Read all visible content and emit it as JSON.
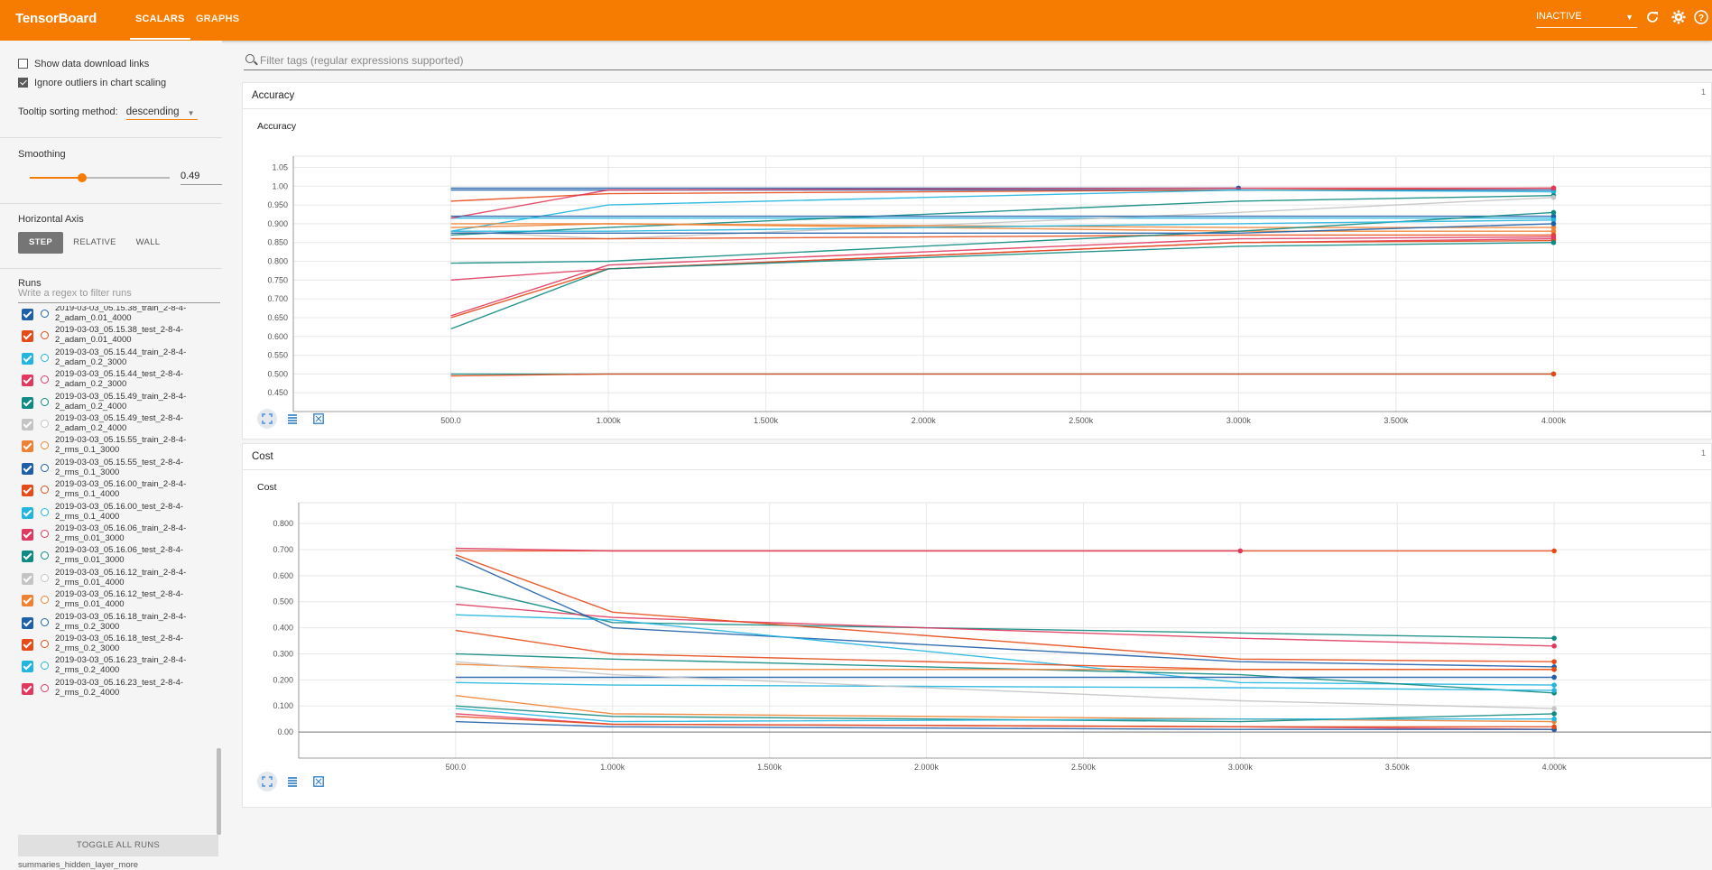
{
  "app": {
    "title": "TensorBoard",
    "tabs": [
      "SCALARS",
      "GRAPHS"
    ],
    "active_tab": "SCALARS",
    "status_select": "INACTIVE",
    "accent": "#f57c00"
  },
  "sidebar": {
    "show_download_label": "Show data download links",
    "show_download_checked": false,
    "ignore_outliers_label": "Ignore outliers in chart scaling",
    "ignore_outliers_checked": true,
    "tooltip_label": "Tooltip sorting method:",
    "tooltip_value": "descending",
    "smoothing_label": "Smoothing",
    "smoothing_value": "0.49",
    "smoothing_fraction": 0.49,
    "horizontal_axis_label": "Horizontal Axis",
    "axis_buttons": [
      "STEP",
      "RELATIVE",
      "WALL"
    ],
    "axis_active": "STEP",
    "runs_label": "Runs",
    "runs_filter_placeholder": "Write a regex to filter runs",
    "runs": [
      {
        "name_line1": "2019-03-03_05.15.38_train_2-8-4-",
        "name_line2": "2_adam_0.01_4000",
        "color": "#1f5fa8",
        "checked": true
      },
      {
        "name_line1": "2019-03-03_05.15.38_test_2-8-4-",
        "name_line2": "2_adam_0.01_4000",
        "color": "#e64a19",
        "checked": true
      },
      {
        "name_line1": "2019-03-03_05.15.44_train_2-8-4-",
        "name_line2": "2_adam_0.2_3000",
        "color": "#22b5e0",
        "checked": true
      },
      {
        "name_line1": "2019-03-03_05.15.44_test_2-8-4-",
        "name_line2": "2_adam_0.2_3000",
        "color": "#e0385f",
        "checked": true
      },
      {
        "name_line1": "2019-03-03_05.15.49_train_2-8-4-",
        "name_line2": "2_adam_0.2_4000",
        "color": "#0f8a82",
        "checked": true
      },
      {
        "name_line1": "2019-03-03_05.15.49_test_2-8-4-",
        "name_line2": "2_adam_0.2_4000",
        "color": "#c4c4c4",
        "checked": true
      },
      {
        "name_line1": "2019-03-03_05.15.55_train_2-8-4-",
        "name_line2": "2_rms_0.1_3000",
        "color": "#ef8232",
        "checked": true
      },
      {
        "name_line1": "2019-03-03_05.15.55_test_2-8-4-",
        "name_line2": "2_rms_0.1_3000",
        "color": "#1f5fa8",
        "checked": true
      },
      {
        "name_line1": "2019-03-03_05.16.00_train_2-8-4-",
        "name_line2": "2_rms_0.1_4000",
        "color": "#e64a19",
        "checked": true
      },
      {
        "name_line1": "2019-03-03_05.16.00_test_2-8-4-",
        "name_line2": "2_rms_0.1_4000",
        "color": "#22b5e0",
        "checked": true
      },
      {
        "name_line1": "2019-03-03_05.16.06_train_2-8-4-",
        "name_line2": "2_rms_0.01_3000",
        "color": "#e0385f",
        "checked": true
      },
      {
        "name_line1": "2019-03-03_05.16.06_test_2-8-4-",
        "name_line2": "2_rms_0.01_3000",
        "color": "#0f8a82",
        "checked": true
      },
      {
        "name_line1": "2019-03-03_05.16.12_train_2-8-4-",
        "name_line2": "2_rms_0.01_4000",
        "color": "#c4c4c4",
        "checked": true
      },
      {
        "name_line1": "2019-03-03_05.16.12_test_2-8-4-",
        "name_line2": "2_rms_0.01_4000",
        "color": "#ef8232",
        "checked": true
      },
      {
        "name_line1": "2019-03-03_05.16.18_train_2-8-4-",
        "name_line2": "2_rms_0.2_3000",
        "color": "#1f5fa8",
        "checked": true
      },
      {
        "name_line1": "2019-03-03_05.16.18_test_2-8-4-",
        "name_line2": "2_rms_0.2_3000",
        "color": "#e64a19",
        "checked": true
      },
      {
        "name_line1": "2019-03-03_05.16.23_train_2-8-4-",
        "name_line2": "2_rms_0.2_4000",
        "color": "#22b5e0",
        "checked": true
      },
      {
        "name_line1": "2019-03-03_05.16.23_test_2-8-4-",
        "name_line2": "2_rms_0.2_4000",
        "color": "#e0385f",
        "checked": true
      }
    ],
    "toggle_all_label": "TOGGLE ALL RUNS",
    "footer_path": "summaries_hidden_layer_more"
  },
  "main": {
    "filter_placeholder": "Filter tags (regular expressions supported)",
    "sections": [
      {
        "title": "Accuracy",
        "count": "1",
        "card_title": "Accuracy"
      },
      {
        "title": "Cost",
        "count": "1",
        "card_title": "Cost"
      }
    ]
  },
  "chart_data": [
    {
      "type": "line",
      "title": "Accuracy",
      "xlim": [
        0,
        4500
      ],
      "ylim": [
        0.4,
        1.08
      ],
      "xticks": [
        500,
        1000,
        1500,
        2000,
        2500,
        3000,
        3500,
        4000
      ],
      "xtick_labels": [
        "500.0",
        "1.000k",
        "1.500k",
        "2.000k",
        "2.500k",
        "3.000k",
        "3.500k",
        "4.000k"
      ],
      "yticks": [
        0.45,
        0.5,
        0.55,
        0.6,
        0.65,
        0.7,
        0.75,
        0.8,
        0.85,
        0.9,
        0.95,
        1.0,
        1.05
      ],
      "ytick_labels": [
        "0.450",
        "0.500",
        "0.550",
        "0.600",
        "0.650",
        "0.700",
        "0.750",
        "0.800",
        "0.850",
        "0.900",
        "0.950",
        "1.00",
        "1.05"
      ],
      "series": [
        {
          "color": "#1f5fa8",
          "x": [
            500,
            1000,
            3000
          ],
          "y": [
            0.995,
            0.995,
            0.995
          ]
        },
        {
          "color": "#1f5fa8",
          "x": [
            500,
            1000,
            3000,
            4000
          ],
          "y": [
            0.99,
            0.99,
            0.99,
            0.99
          ]
        },
        {
          "color": "#e64a19",
          "x": [
            500,
            1000,
            3000,
            4000
          ],
          "y": [
            0.96,
            0.98,
            0.99,
            0.995
          ]
        },
        {
          "color": "#22b5e0",
          "x": [
            500,
            1000,
            3000,
            4000
          ],
          "y": [
            0.915,
            0.915,
            0.915,
            0.915
          ]
        },
        {
          "color": "#22b5e0",
          "x": [
            500,
            1000,
            3000,
            4000
          ],
          "y": [
            0.88,
            0.95,
            0.99,
            0.985
          ]
        },
        {
          "color": "#0f8a82",
          "x": [
            500,
            1000,
            3000,
            4000
          ],
          "y": [
            0.87,
            0.89,
            0.96,
            0.975
          ]
        },
        {
          "color": "#e0385f",
          "x": [
            500,
            1000,
            3000,
            4000
          ],
          "y": [
            0.915,
            0.99,
            0.995,
            0.995
          ]
        },
        {
          "color": "#e0385f",
          "x": [
            500,
            1000,
            3000,
            4000
          ],
          "y": [
            0.75,
            0.78,
            0.85,
            0.86
          ]
        },
        {
          "color": "#c4c4c4",
          "x": [
            500,
            1000,
            3000,
            4000
          ],
          "y": [
            0.88,
            0.86,
            0.93,
            0.97
          ]
        },
        {
          "color": "#ef8232",
          "x": [
            500,
            1000,
            3000,
            4000
          ],
          "y": [
            0.89,
            0.9,
            0.88,
            0.88
          ]
        },
        {
          "color": "#ef8232",
          "x": [
            500,
            1000,
            3000,
            4000
          ],
          "y": [
            0.9,
            0.9,
            0.89,
            0.89
          ]
        },
        {
          "color": "#1f5fa8",
          "x": [
            500,
            1000,
            3000,
            4000
          ],
          "y": [
            0.92,
            0.92,
            0.92,
            0.92
          ]
        },
        {
          "color": "#e64a19",
          "x": [
            500,
            1000,
            3000,
            4000
          ],
          "y": [
            0.86,
            0.86,
            0.87,
            0.87
          ]
        },
        {
          "color": "#e64a19",
          "x": [
            500,
            1000,
            3000,
            4000
          ],
          "y": [
            0.65,
            0.78,
            0.85,
            0.855
          ]
        },
        {
          "color": "#0f8a82",
          "x": [
            500,
            1000,
            3000,
            4000
          ],
          "y": [
            0.795,
            0.8,
            0.88,
            0.93
          ]
        },
        {
          "color": "#0f8a82",
          "x": [
            500,
            1000,
            3000,
            4000
          ],
          "y": [
            0.62,
            0.78,
            0.84,
            0.85
          ]
        },
        {
          "color": "#22b5e0",
          "x": [
            500,
            1000,
            3000,
            4000
          ],
          "y": [
            0.88,
            0.88,
            0.9,
            0.91
          ]
        },
        {
          "color": "#e0385f",
          "x": [
            500,
            1000,
            3000,
            4000
          ],
          "y": [
            0.655,
            0.79,
            0.86,
            0.865
          ]
        },
        {
          "color": "#1f5fa8",
          "x": [
            500,
            1000,
            3000,
            4000
          ],
          "y": [
            0.875,
            0.875,
            0.875,
            0.9
          ]
        },
        {
          "color": "#0f8a82",
          "x": [
            500,
            1000,
            3000,
            4000
          ],
          "y": [
            0.5,
            0.5,
            0.5,
            0.5
          ]
        },
        {
          "color": "#e64a19",
          "x": [
            500,
            1000,
            3000,
            4000
          ],
          "y": [
            0.495,
            0.5,
            0.5,
            0.5
          ]
        }
      ]
    },
    {
      "type": "line",
      "title": "Cost",
      "xlim": [
        0,
        4500
      ],
      "ylim": [
        -0.1,
        0.88
      ],
      "xticks": [
        500,
        1000,
        1500,
        2000,
        2500,
        3000,
        3500,
        4000
      ],
      "xtick_labels": [
        "500.0",
        "1.000k",
        "1.500k",
        "2.000k",
        "2.500k",
        "3.000k",
        "3.500k",
        "4.000k"
      ],
      "yticks": [
        0.0,
        0.1,
        0.2,
        0.3,
        0.4,
        0.5,
        0.6,
        0.7,
        0.8
      ],
      "ytick_labels": [
        "0.00",
        "0.100",
        "0.200",
        "0.300",
        "0.400",
        "0.500",
        "0.600",
        "0.700",
        "0.800"
      ],
      "series": [
        {
          "color": "#e64a19",
          "x": [
            500,
            1000,
            3000,
            4000
          ],
          "y": [
            0.695,
            0.695,
            0.695,
            0.695
          ]
        },
        {
          "color": "#e0385f",
          "x": [
            500,
            1000,
            3000
          ],
          "y": [
            0.705,
            0.695,
            0.695
          ]
        },
        {
          "color": "#0f8a82",
          "x": [
            500,
            1000,
            3000,
            4000
          ],
          "y": [
            0.56,
            0.42,
            0.38,
            0.36
          ]
        },
        {
          "color": "#e0385f",
          "x": [
            500,
            1000,
            3000,
            4000
          ],
          "y": [
            0.49,
            0.44,
            0.36,
            0.33
          ]
        },
        {
          "color": "#1f5fa8",
          "x": [
            500,
            1000,
            3000,
            4000
          ],
          "y": [
            0.67,
            0.4,
            0.27,
            0.25
          ]
        },
        {
          "color": "#e64a19",
          "x": [
            500,
            1000,
            3000,
            4000
          ],
          "y": [
            0.68,
            0.46,
            0.28,
            0.27
          ]
        },
        {
          "color": "#22b5e0",
          "x": [
            500,
            1000,
            3000,
            4000
          ],
          "y": [
            0.45,
            0.43,
            0.19,
            0.18
          ]
        },
        {
          "color": "#0f8a82",
          "x": [
            500,
            1000,
            3000,
            4000
          ],
          "y": [
            0.3,
            0.28,
            0.22,
            0.15
          ]
        },
        {
          "color": "#ef8232",
          "x": [
            500,
            1000,
            3000,
            4000
          ],
          "y": [
            0.26,
            0.24,
            0.24,
            0.24
          ]
        },
        {
          "color": "#e64a19",
          "x": [
            500,
            1000,
            3000,
            4000
          ],
          "y": [
            0.39,
            0.3,
            0.24,
            0.24
          ]
        },
        {
          "color": "#1f5fa8",
          "x": [
            500,
            1000,
            3000,
            4000
          ],
          "y": [
            0.21,
            0.21,
            0.21,
            0.21
          ]
        },
        {
          "color": "#22b5e0",
          "x": [
            500,
            1000,
            3000,
            4000
          ],
          "y": [
            0.19,
            0.18,
            0.17,
            0.16
          ]
        },
        {
          "color": "#c4c4c4",
          "x": [
            500,
            1000,
            3000,
            4000
          ],
          "y": [
            0.27,
            0.22,
            0.12,
            0.09
          ]
        },
        {
          "color": "#ef8232",
          "x": [
            500,
            1000,
            3000,
            4000
          ],
          "y": [
            0.14,
            0.07,
            0.05,
            0.04
          ]
        },
        {
          "color": "#0f8a82",
          "x": [
            500,
            1000,
            3000,
            4000
          ],
          "y": [
            0.1,
            0.06,
            0.04,
            0.07
          ]
        },
        {
          "color": "#22b5e0",
          "x": [
            500,
            1000,
            3000,
            4000
          ],
          "y": [
            0.09,
            0.04,
            0.05,
            0.05
          ]
        },
        {
          "color": "#e0385f",
          "x": [
            500,
            1000,
            3000,
            4000
          ],
          "y": [
            0.07,
            0.03,
            0.02,
            0.01
          ]
        },
        {
          "color": "#1f5fa8",
          "x": [
            500,
            1000,
            3000,
            4000
          ],
          "y": [
            0.04,
            0.02,
            0.01,
            0.01
          ]
        },
        {
          "color": "#e64a19",
          "x": [
            500,
            1000,
            3000,
            4000
          ],
          "y": [
            0.06,
            0.03,
            0.02,
            0.02
          ]
        }
      ]
    }
  ]
}
